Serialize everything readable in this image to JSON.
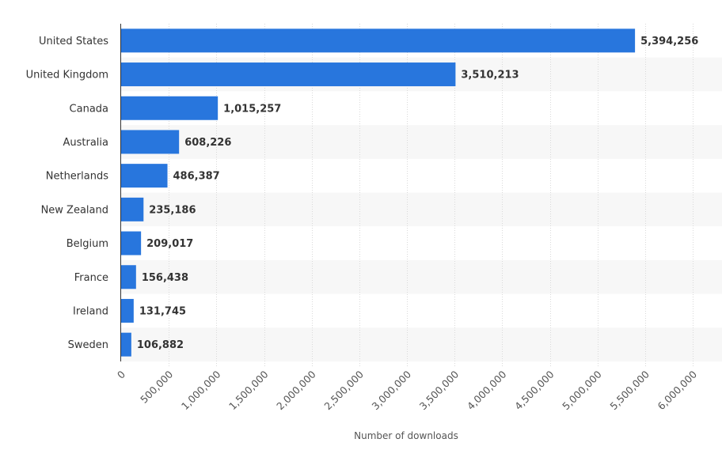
{
  "chart_data": {
    "type": "bar",
    "orientation": "horizontal",
    "title": "",
    "xlabel": "Number of downloads",
    "ylabel": "",
    "categories": [
      "United States",
      "United Kingdom",
      "Canada",
      "Australia",
      "Netherlands",
      "New Zealand",
      "Belgium",
      "France",
      "Ireland",
      "Sweden"
    ],
    "values": [
      5394256,
      3510213,
      1015257,
      608226,
      486387,
      235186,
      209017,
      156438,
      131745,
      106882
    ],
    "value_labels": [
      "5,394,256",
      "3,510,213",
      "1,015,257",
      "608,226",
      "486,387",
      "235,186",
      "209,017",
      "156,438",
      "131,745",
      "106,882"
    ],
    "xlim": [
      0,
      6000000
    ],
    "x_ticks": [
      0,
      500000,
      1000000,
      1500000,
      2000000,
      2500000,
      3000000,
      3500000,
      4000000,
      4500000,
      5000000,
      5500000,
      6000000
    ],
    "x_tick_labels": [
      "0",
      "500,000",
      "1,000,000",
      "1,500,000",
      "2,000,000",
      "2,500,000",
      "3,000,000",
      "3,500,000",
      "4,000,000",
      "4,500,000",
      "5,000,000",
      "5,500,000",
      "6,000,000"
    ],
    "grid": true,
    "legend": "none",
    "bar_color": "#2876dd",
    "alt_band_color": "#f7f7f7"
  }
}
